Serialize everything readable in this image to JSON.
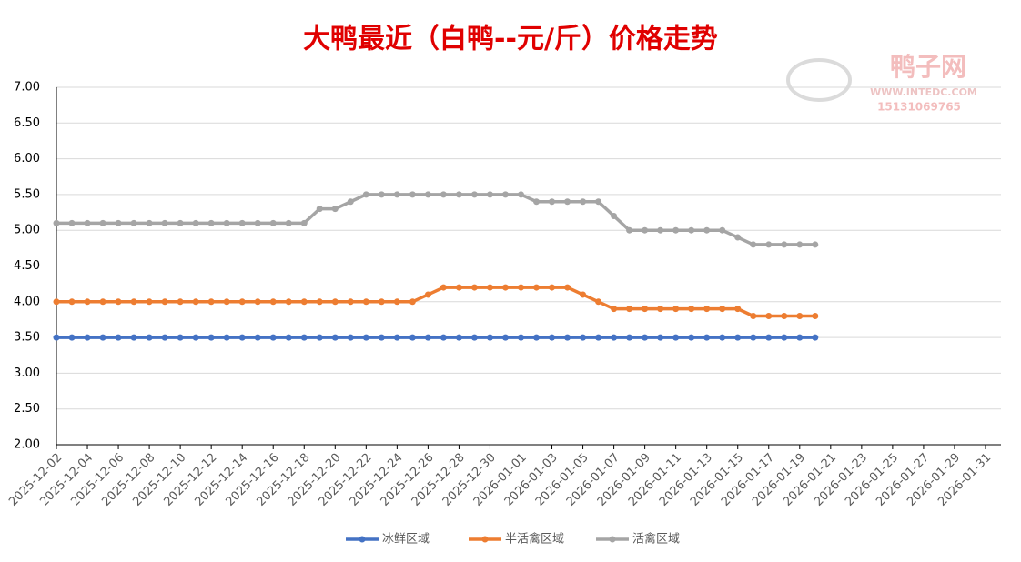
{
  "chart_data": {
    "type": "line",
    "title": "大鸭最近（白鸭--元/斤）价格走势",
    "watermark": {
      "name": "鸭子网",
      "url": "WWW.INTEDC.COM",
      "phone": "15131069765"
    },
    "x": [
      "2025-12-02",
      "2025-12-03",
      "2025-12-04",
      "2025-12-05",
      "2025-12-06",
      "2025-12-07",
      "2025-12-08",
      "2025-12-09",
      "2025-12-10",
      "2025-12-11",
      "2025-12-12",
      "2025-12-13",
      "2025-12-14",
      "2025-12-15",
      "2025-12-16",
      "2025-12-17",
      "2025-12-18",
      "2025-12-19",
      "2025-12-20",
      "2025-12-21",
      "2025-12-22",
      "2025-12-23",
      "2025-12-24",
      "2025-12-25",
      "2025-12-26",
      "2025-12-27",
      "2025-12-28",
      "2025-12-29",
      "2025-12-30",
      "2025-12-31",
      "2026-01-01",
      "2026-01-02",
      "2026-01-03",
      "2026-01-04",
      "2026-01-05",
      "2026-01-06",
      "2026-01-07",
      "2026-01-08",
      "2026-01-09",
      "2026-01-10",
      "2026-01-11",
      "2026-01-12",
      "2026-01-13",
      "2026-01-14",
      "2026-01-15",
      "2026-01-16",
      "2026-01-17",
      "2026-01-18",
      "2026-01-19",
      "2026-01-20"
    ],
    "series": [
      {
        "name": "冰鲜区域",
        "color": "#4472c4",
        "values": [
          3.5,
          3.5,
          3.5,
          3.5,
          3.5,
          3.5,
          3.5,
          3.5,
          3.5,
          3.5,
          3.5,
          3.5,
          3.5,
          3.5,
          3.5,
          3.5,
          3.5,
          3.5,
          3.5,
          3.5,
          3.5,
          3.5,
          3.5,
          3.5,
          3.5,
          3.5,
          3.5,
          3.5,
          3.5,
          3.5,
          3.5,
          3.5,
          3.5,
          3.5,
          3.5,
          3.5,
          3.5,
          3.5,
          3.5,
          3.5,
          3.5,
          3.5,
          3.5,
          3.5,
          3.5,
          3.5,
          3.5,
          3.5,
          3.5,
          3.5
        ]
      },
      {
        "name": "半活禽区域",
        "color": "#ed7d31",
        "values": [
          4.0,
          4.0,
          4.0,
          4.0,
          4.0,
          4.0,
          4.0,
          4.0,
          4.0,
          4.0,
          4.0,
          4.0,
          4.0,
          4.0,
          4.0,
          4.0,
          4.0,
          4.0,
          4.0,
          4.0,
          4.0,
          4.0,
          4.0,
          4.0,
          4.1,
          4.2,
          4.2,
          4.2,
          4.2,
          4.2,
          4.2,
          4.2,
          4.2,
          4.2,
          4.1,
          4.0,
          3.9,
          3.9,
          3.9,
          3.9,
          3.9,
          3.9,
          3.9,
          3.9,
          3.9,
          3.8,
          3.8,
          3.8,
          3.8,
          3.8
        ]
      },
      {
        "name": "活禽区域",
        "color": "#a5a5a5",
        "values": [
          5.1,
          5.1,
          5.1,
          5.1,
          5.1,
          5.1,
          5.1,
          5.1,
          5.1,
          5.1,
          5.1,
          5.1,
          5.1,
          5.1,
          5.1,
          5.1,
          5.1,
          5.3,
          5.3,
          5.4,
          5.5,
          5.5,
          5.5,
          5.5,
          5.5,
          5.5,
          5.5,
          5.5,
          5.5,
          5.5,
          5.5,
          5.4,
          5.4,
          5.4,
          5.4,
          5.4,
          5.2,
          5.0,
          5.0,
          5.0,
          5.0,
          5.0,
          5.0,
          5.0,
          4.9,
          4.8,
          4.8,
          4.8,
          4.8,
          4.8
        ]
      }
    ],
    "xlim": [
      "2025-12-02",
      "2026-02-01"
    ],
    "xticks": [
      "2025-12-02",
      "2025-12-04",
      "2025-12-06",
      "2025-12-08",
      "2025-12-10",
      "2025-12-12",
      "2025-12-14",
      "2025-12-16",
      "2025-12-18",
      "2025-12-20",
      "2025-12-22",
      "2025-12-24",
      "2025-12-26",
      "2025-12-28",
      "2025-12-30",
      "2026-01-01",
      "2026-01-03",
      "2026-01-05",
      "2026-01-07",
      "2026-01-09",
      "2026-01-11",
      "2026-01-13",
      "2026-01-15",
      "2026-01-17",
      "2026-01-19",
      "2026-01-21",
      "2026-01-23",
      "2026-01-25",
      "2026-01-27",
      "2026-01-29",
      "2026-01-31"
    ],
    "ylim": [
      2,
      7
    ],
    "yticks": [
      {
        "value": 2,
        "label": "2.00"
      },
      {
        "value": 2.5,
        "label": "2.50"
      },
      {
        "value": 3,
        "label": "3.00"
      },
      {
        "value": 3.5,
        "label": "3.50"
      },
      {
        "value": 4,
        "label": "4.00"
      },
      {
        "value": 4.5,
        "label": "4.50"
      },
      {
        "value": 5,
        "label": "5.00"
      },
      {
        "value": 5.5,
        "label": "5.50"
      },
      {
        "value": 6,
        "label": "6.00"
      },
      {
        "value": 6.5,
        "label": "6.50"
      },
      {
        "value": 7,
        "label": "7.00"
      }
    ],
    "grid": true,
    "legend": "bottom"
  }
}
